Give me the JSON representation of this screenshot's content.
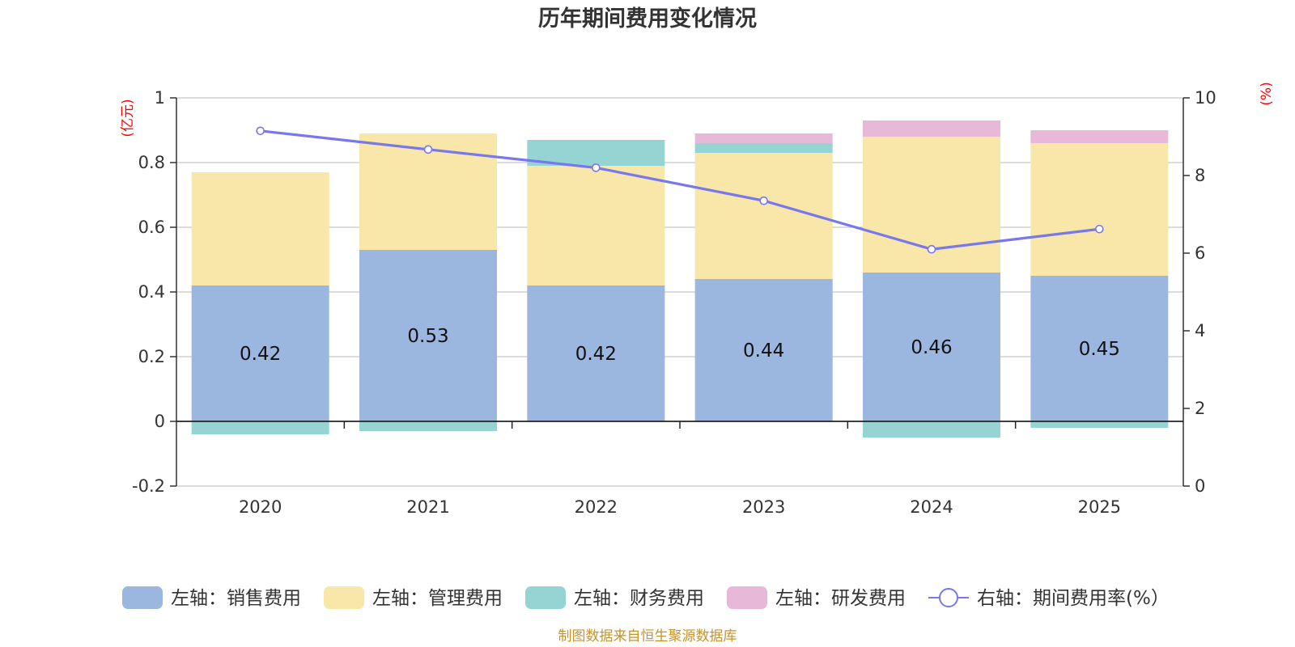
{
  "chart_data": {
    "type": "bar",
    "title": "历年期间费用变化情况",
    "categories": [
      "2020",
      "2021",
      "2022",
      "2023",
      "2024",
      "2025"
    ],
    "left_axis": {
      "unit": "(亿元)",
      "ylim": [
        -0.2,
        1
      ],
      "ticks": [
        -0.2,
        0,
        0.2,
        0.4,
        0.6,
        0.8,
        1
      ],
      "tick_labels": [
        "-0.2",
        "0",
        "0.2",
        "0.4",
        "0.6",
        "0.8",
        "1"
      ]
    },
    "right_axis": {
      "unit": "(%)",
      "ylim": [
        0,
        10
      ],
      "ticks": [
        0,
        2,
        4,
        6,
        8,
        10
      ],
      "tick_labels": [
        "0",
        "2",
        "4",
        "6",
        "8",
        "10"
      ]
    },
    "series": [
      {
        "name": "左轴：销售费用",
        "type": "bar",
        "axis": "left",
        "color": "#9bb7e0",
        "values": [
          0.42,
          0.53,
          0.42,
          0.44,
          0.46,
          0.45
        ],
        "labels": [
          "0.42",
          "0.53",
          "0.42",
          "0.44",
          "0.46",
          "0.45"
        ]
      },
      {
        "name": "左轴：管理费用",
        "type": "bar",
        "axis": "left",
        "color": "#f8e7a8",
        "values": [
          0.35,
          0.36,
          0.37,
          0.39,
          0.42,
          0.41
        ]
      },
      {
        "name": "左轴：财务费用",
        "type": "bar",
        "axis": "left",
        "color": "#96d4d4",
        "values": [
          -0.04,
          -0.03,
          0.08,
          0.03,
          -0.05,
          -0.02
        ]
      },
      {
        "name": "左轴：研发费用",
        "type": "bar",
        "axis": "left",
        "color": "#e8b8d8",
        "values": [
          0,
          0,
          0,
          0.03,
          0.05,
          0.04
        ]
      },
      {
        "name": "右轴：期间费用率(%）",
        "type": "line",
        "axis": "right",
        "color": "#7777ee",
        "values": [
          9.15,
          8.67,
          8.2,
          7.35,
          6.1,
          6.62
        ]
      }
    ]
  },
  "footer": "制图数据来自恒生聚源数据库"
}
